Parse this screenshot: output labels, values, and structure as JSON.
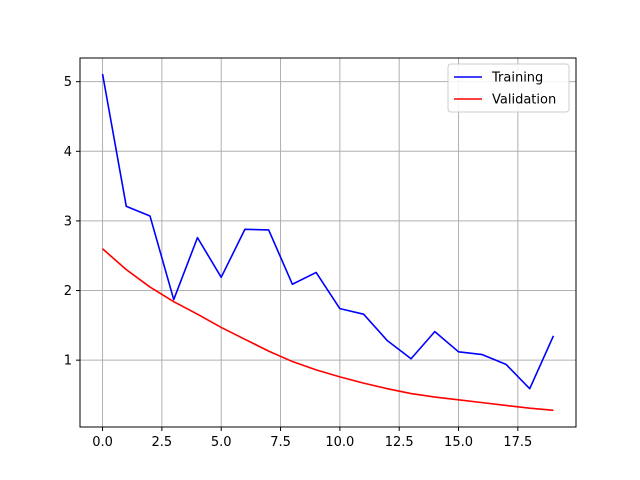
{
  "chart_data": {
    "type": "line",
    "title": "",
    "xlabel": "",
    "ylabel": "",
    "xlim": [
      -0.95,
      19.95
    ],
    "ylim": [
      0.04,
      5.34
    ],
    "grid": true,
    "legend_position": "top-right",
    "x_ticks": [
      0,
      2.5,
      5,
      7.5,
      10,
      12.5,
      15,
      17.5
    ],
    "x_tick_labels": [
      "0.0",
      "2.5",
      "5.0",
      "7.5",
      "10.0",
      "12.5",
      "15.0",
      "17.5"
    ],
    "y_ticks": [
      1,
      2,
      3,
      4,
      5
    ],
    "y_tick_labels": [
      "1",
      "2",
      "3",
      "4",
      "5"
    ],
    "x": [
      0,
      1,
      2,
      3,
      4,
      5,
      6,
      7,
      8,
      9,
      10,
      11,
      12,
      13,
      14,
      15,
      16,
      17,
      18,
      19
    ],
    "series": [
      {
        "name": "Training",
        "color": "#0000ff",
        "values": [
          5.11,
          3.21,
          3.07,
          1.87,
          2.76,
          2.19,
          2.88,
          2.87,
          2.09,
          2.26,
          1.74,
          1.66,
          1.28,
          1.02,
          1.41,
          1.12,
          1.08,
          0.94,
          0.59,
          1.35
        ]
      },
      {
        "name": "Validation",
        "color": "#ff0000",
        "values": [
          2.6,
          2.3,
          2.05,
          1.84,
          1.66,
          1.47,
          1.3,
          1.13,
          0.98,
          0.86,
          0.76,
          0.67,
          0.59,
          0.52,
          0.47,
          0.43,
          0.39,
          0.35,
          0.31,
          0.28
        ]
      }
    ]
  }
}
